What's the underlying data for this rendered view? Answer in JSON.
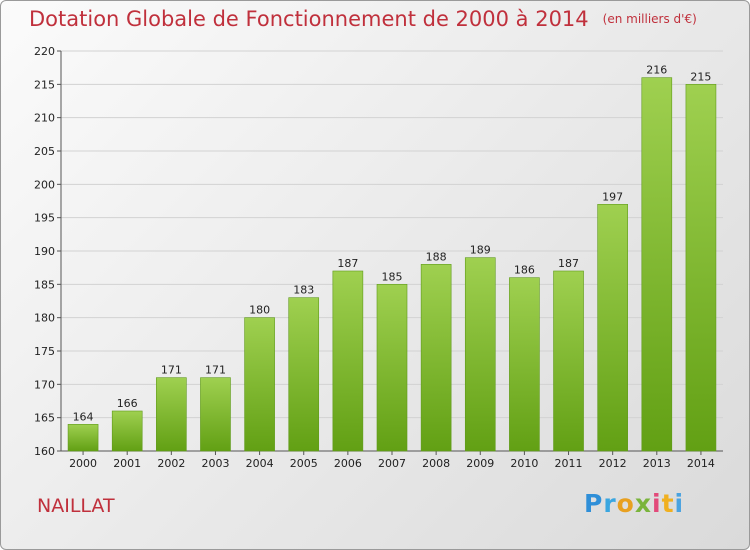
{
  "chart_data": {
    "type": "bar",
    "title": "Dotation Globale de Fonctionnement de 2000 à 2014",
    "subtitle": "(en milliers d'€)",
    "categories": [
      "2000",
      "2001",
      "2002",
      "2003",
      "2004",
      "2005",
      "2006",
      "2007",
      "2008",
      "2009",
      "2010",
      "2011",
      "2012",
      "2013",
      "2014"
    ],
    "values": [
      164,
      166,
      171,
      171,
      180,
      183,
      187,
      185,
      188,
      189,
      186,
      187,
      197,
      216,
      215
    ],
    "ylim": [
      160,
      220
    ],
    "yticks": [
      160,
      165,
      170,
      175,
      180,
      185,
      190,
      195,
      200,
      205,
      210,
      215,
      220
    ],
    "grid": true,
    "bar_color_top": "#9fd050",
    "bar_color_bottom": "#62a014"
  },
  "town": "NAILLAT",
  "logo": {
    "letters": [
      "P",
      "r",
      "o",
      "x",
      "i",
      "t",
      "i"
    ]
  }
}
